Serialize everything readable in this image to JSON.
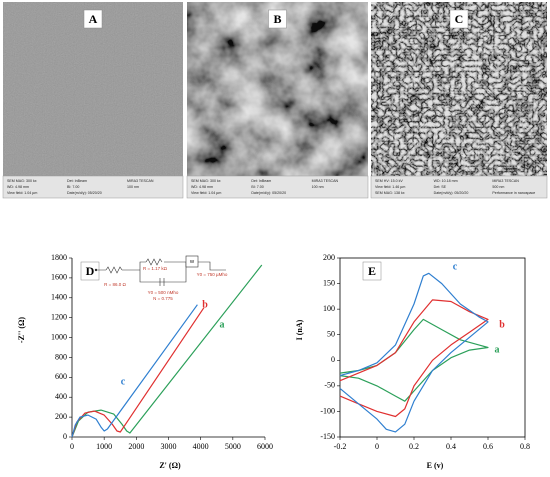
{
  "panels": [
    {
      "label": "A",
      "info": [
        "SEM MAG: 300 kx",
        "Det: InBeam",
        "MIRA3 TESCAN",
        "WD: 4.98 mm",
        "BI: 7.00",
        "100 nm",
        "View field: 1.04 µm",
        "Date(m/d/y): 05/20/20"
      ]
    },
    {
      "label": "B",
      "info": [
        "SEM MAG: 300 kx",
        "Det: InBeam",
        "MIRA3 TESCAN",
        "WD: 4.98 mm",
        "BI: 7.00",
        "100 nm",
        "View field: 1.04 µm",
        "Date(m/d/y): 05/20/20"
      ]
    },
    {
      "label": "C",
      "info": [
        "SEM HV: 15.0 kV",
        "WD: 10.18 mm",
        "MIRA3 TESCAN",
        "View field: 1.46 µm",
        "Det: SE",
        "500 nm",
        "SEM MAG: 138 kx",
        "Date(m/d/y): 05/20/20",
        "Performance in nanospace"
      ]
    }
  ],
  "chart_data": [
    {
      "type": "line",
      "title": "D",
      "xlabel": "Z' (Ω)",
      "ylabel": "-Z'' (Ω)",
      "xlim": [
        0,
        6000
      ],
      "xticks": [
        0,
        1000,
        2000,
        3000,
        4000,
        5000,
        6000
      ],
      "ylim": [
        0,
        1800
      ],
      "yticks": [
        0,
        200,
        400,
        600,
        800,
        1000,
        1200,
        1400,
        1600,
        1800
      ],
      "annotations": [
        "R = 86.0 Ω",
        "R = 1.17 kΩ",
        "W",
        "Y0 = 750 µMho",
        "Y0 = 500 nMho",
        "N = 0.775"
      ],
      "series": [
        {
          "name": "a",
          "color": "#2ca05a",
          "x": [
            0,
            200,
            500,
            900,
            1300,
            1550,
            1700,
            1800,
            5900
          ],
          "y": [
            0,
            160,
            250,
            270,
            230,
            130,
            60,
            40,
            1730
          ]
        },
        {
          "name": "b",
          "color": "#e03030",
          "x": [
            0,
            150,
            400,
            700,
            1000,
            1250,
            1400,
            1500,
            4100
          ],
          "y": [
            0,
            150,
            240,
            260,
            220,
            130,
            60,
            50,
            1300
          ]
        },
        {
          "name": "c",
          "color": "#2f7fd0",
          "x": [
            0,
            100,
            250,
            500,
            750,
            900,
            1000,
            1100,
            3900
          ],
          "y": [
            0,
            120,
            200,
            220,
            180,
            100,
            60,
            80,
            1330
          ]
        }
      ]
    },
    {
      "type": "line",
      "title": "E",
      "xlabel": "E (v)",
      "ylabel": "I (nA)",
      "xlim": [
        -0.2,
        0.8
      ],
      "xticks": [
        -0.2,
        0,
        0.2,
        0.4,
        0.6,
        0.8
      ],
      "ylim": [
        -150,
        200
      ],
      "yticks": [
        -150,
        -100,
        -50,
        0,
        50,
        100,
        150,
        200
      ],
      "series": [
        {
          "name": "a",
          "color": "#2ca05a",
          "x": [
            -0.2,
            -0.1,
            0,
            0.1,
            0.2,
            0.25,
            0.35,
            0.45,
            0.55,
            0.6,
            0.5,
            0.4,
            0.3,
            0.2,
            0.15,
            0.1,
            0,
            -0.1,
            -0.2
          ],
          "y": [
            -25,
            -20,
            -10,
            15,
            60,
            80,
            60,
            40,
            30,
            25,
            20,
            5,
            -20,
            -60,
            -80,
            -70,
            -50,
            -35,
            -30
          ]
        },
        {
          "name": "b",
          "color": "#e03030",
          "x": [
            -0.2,
            -0.1,
            0,
            0.1,
            0.2,
            0.3,
            0.4,
            0.5,
            0.6,
            0.5,
            0.4,
            0.3,
            0.2,
            0.15,
            0.1,
            0,
            -0.1,
            -0.2
          ],
          "y": [
            -40,
            -25,
            -10,
            15,
            75,
            118,
            115,
            95,
            80,
            55,
            30,
            0,
            -50,
            -95,
            -110,
            -100,
            -85,
            -70
          ]
        },
        {
          "name": "c",
          "color": "#2f7fd0",
          "x": [
            -0.2,
            -0.1,
            0,
            0.1,
            0.2,
            0.25,
            0.28,
            0.35,
            0.45,
            0.55,
            0.6,
            0.5,
            0.4,
            0.3,
            0.2,
            0.15,
            0.1,
            0.05,
            0,
            -0.1,
            -0.2
          ],
          "y": [
            -30,
            -20,
            -5,
            30,
            110,
            165,
            170,
            150,
            110,
            85,
            75,
            45,
            15,
            -20,
            -80,
            -125,
            -140,
            -135,
            -115,
            -85,
            -55
          ]
        }
      ]
    }
  ]
}
